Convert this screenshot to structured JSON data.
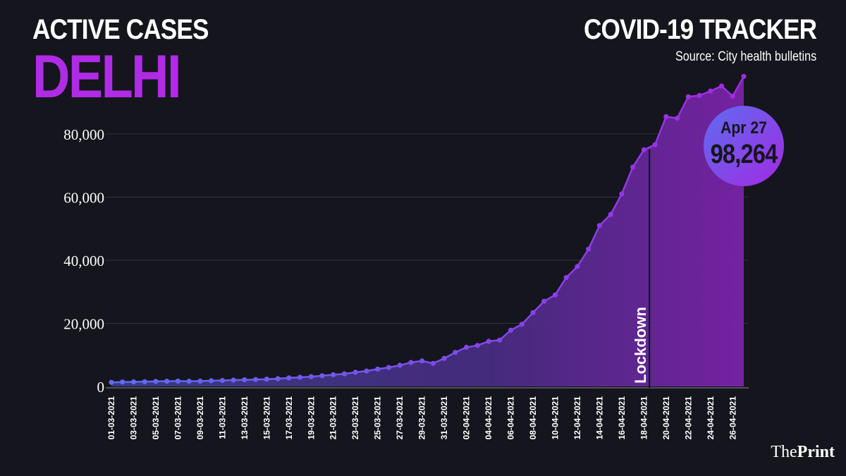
{
  "header": {
    "subtitle": "ACTIVE CASES",
    "title": "DELHI",
    "tracker": "COVID-19 TRACKER",
    "source": "Source: City health bulletins"
  },
  "callout": {
    "date": "Apr 27",
    "value": "98,264"
  },
  "logo": {
    "prefix": "The",
    "name": "Print"
  },
  "colors": {
    "background": "#15151d",
    "title": "#b02be6",
    "line_start": "#5f6cf0",
    "line_end": "#a12ae3",
    "grid": "#33333d"
  },
  "chart_data": {
    "type": "area",
    "title": "",
    "xlabel": "",
    "ylabel": "",
    "ylim": [
      0,
      100000
    ],
    "yticks": [
      0,
      20000,
      40000,
      60000,
      80000
    ],
    "ytick_labels": [
      "0",
      "20,000",
      "40,000",
      "60,000",
      "80,000"
    ],
    "grid": "horizontal",
    "x": [
      "01-03-2021",
      "02-03-2021",
      "03-03-2021",
      "04-03-2021",
      "05-03-2021",
      "06-03-2021",
      "07-03-2021",
      "08-03-2021",
      "09-03-2021",
      "10-03-2021",
      "11-03-2021",
      "12-03-2021",
      "13-03-2021",
      "14-03-2021",
      "15-03-2021",
      "16-03-2021",
      "17-03-2021",
      "18-03-2021",
      "19-03-2021",
      "20-03-2021",
      "21-03-2021",
      "22-03-2021",
      "23-03-2021",
      "24-03-2021",
      "25-03-2021",
      "26-03-2021",
      "27-03-2021",
      "28-03-2021",
      "29-03-2021",
      "30-03-2021",
      "31-03-2021",
      "01-04-2021",
      "02-04-2021",
      "03-04-2021",
      "04-04-2021",
      "05-04-2021",
      "06-04-2021",
      "07-04-2021",
      "08-04-2021",
      "09-04-2021",
      "10-04-2021",
      "11-04-2021",
      "12-04-2021",
      "13-04-2021",
      "14-04-2021",
      "15-04-2021",
      "16-04-2021",
      "17-04-2021",
      "18-04-2021",
      "19-04-2021",
      "20-04-2021",
      "21-04-2021",
      "22-04-2021",
      "23-04-2021",
      "24-04-2021",
      "25-04-2021",
      "26-04-2021",
      "27-04-2021"
    ],
    "xtick_labels": [
      "01-03-2021",
      "03-03-2021",
      "05-03-2021",
      "07-03-2021",
      "09-03-2021",
      "11-03-2021",
      "13-03-2021",
      "15-03-2021",
      "17-03-2021",
      "19-03-2021",
      "21-03-2021",
      "23-03-2021",
      "25-03-2021",
      "27-03-2021",
      "29-03-2021",
      "31-03-2021",
      "02-04-2021",
      "04-04-2021",
      "06-04-2021",
      "08-04-2021",
      "10-04-2021",
      "12-04-2021",
      "14-04-2021",
      "16-04-2021",
      "18-04-2021",
      "20-04-2021",
      "22-04-2021",
      "24-04-2021",
      "26-04-2021"
    ],
    "series": [
      {
        "values": [
          1300,
          1400,
          1450,
          1500,
          1600,
          1650,
          1700,
          1650,
          1700,
          1800,
          1900,
          2000,
          2100,
          2200,
          2300,
          2450,
          2700,
          2900,
          3100,
          3400,
          3700,
          4000,
          4500,
          4900,
          5500,
          6000,
          6700,
          7600,
          8100,
          7300,
          8900,
          10800,
          12400,
          13000,
          14300,
          14700,
          17800,
          19700,
          23400,
          27000,
          29000,
          34500,
          38000,
          43500,
          51000,
          54500,
          61000,
          69500,
          75000,
          76600,
          85500,
          85000,
          91800,
          92200,
          93600,
          95200,
          92000,
          98264
        ]
      }
    ],
    "annotations": [
      {
        "text": "Lockdown",
        "x": "19-04-2021"
      }
    ]
  }
}
